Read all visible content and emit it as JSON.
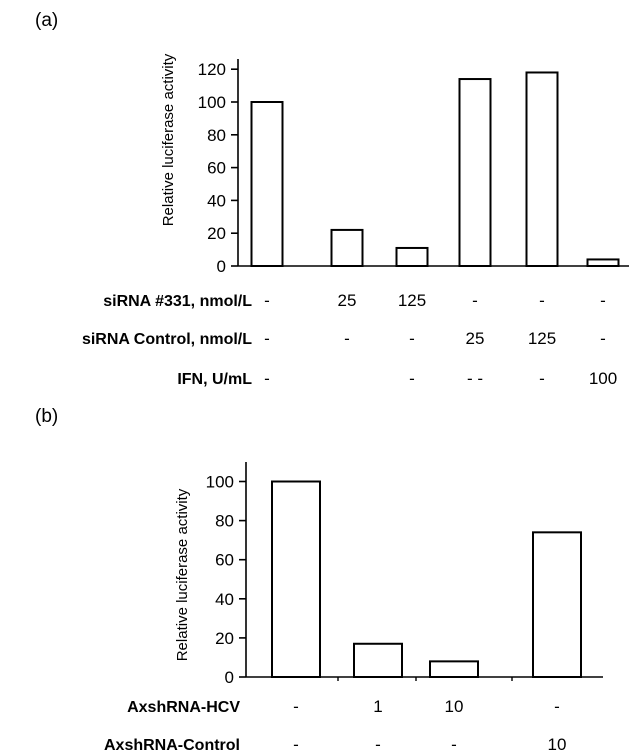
{
  "chart_data": [
    {
      "type": "bar",
      "panel_label": "(a)",
      "ylabel": "Relative luciferase activity",
      "yticks": [
        0,
        20,
        40,
        60,
        80,
        100,
        120
      ],
      "ylim": [
        0,
        130
      ],
      "values": [
        100,
        22,
        11,
        114,
        118,
        4
      ],
      "condition_rows": [
        {
          "label": "siRNA #331, nmol/L",
          "values": [
            "-",
            "25",
            "125",
            "-",
            "-",
            "-"
          ]
        },
        {
          "label": "siRNA Control, nmol/L",
          "values": [
            "-",
            "-",
            "-",
            "25",
            "125",
            "-"
          ]
        },
        {
          "label": "IFN, U/mL",
          "values": [
            "-",
            "",
            "-",
            "- -",
            "-",
            "100"
          ]
        }
      ]
    },
    {
      "type": "bar",
      "panel_label": "(b)",
      "ylabel": "Relative luciferase activity",
      "yticks": [
        0,
        20,
        40,
        60,
        80,
        100
      ],
      "ylim": [
        0,
        110
      ],
      "values": [
        100,
        17,
        8,
        74
      ],
      "condition_rows": [
        {
          "label": "AxshRNA-HCV",
          "values": [
            "-",
            "1",
            "10",
            "-"
          ]
        },
        {
          "label": "AxshRNA-Control",
          "values": [
            "-",
            "-",
            "-",
            "10"
          ]
        }
      ]
    }
  ]
}
